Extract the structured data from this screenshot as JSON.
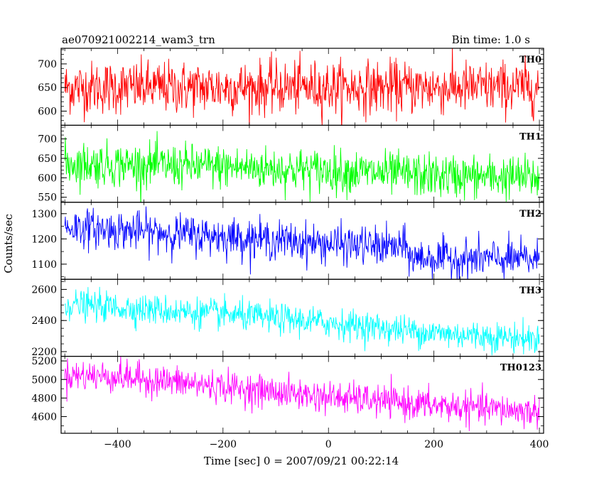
{
  "header": {
    "title": "ae070921002214_wam3_trn",
    "bin_time": "Bin time: 1.0 s"
  },
  "chart_data": {
    "type": "line",
    "xlabel": "Time [sec] 0 = 2007/09/21 00:22:14",
    "ylabel": "Counts/sec",
    "xlim": [
      -507,
      408
    ],
    "x_ticks": [
      -400,
      -200,
      0,
      200,
      400
    ],
    "x_tick_labels": [
      "−400",
      "−200",
      "0",
      "200",
      "400"
    ],
    "x_range": [
      -500,
      400
    ],
    "bin_time_s": 1.0,
    "grid": false,
    "panels": [
      {
        "label": "TH0",
        "color": "#ff0000",
        "ylim": [
          570,
          733
        ],
        "y_ticks": [
          600,
          650,
          700
        ],
        "trend": [
          [
            -500,
            650
          ],
          [
            400,
            650
          ]
        ],
        "noise": 28
      },
      {
        "label": "TH1",
        "color": "#00ff00",
        "ylim": [
          537,
          735
        ],
        "y_ticks": [
          550,
          600,
          650,
          700
        ],
        "trend": [
          [
            -500,
            637
          ],
          [
            -200,
            628
          ],
          [
            0,
            618
          ],
          [
            200,
            605
          ],
          [
            400,
            600
          ]
        ],
        "noise": 28
      },
      {
        "label": "TH2",
        "color": "#0000ff",
        "ylim": [
          1040,
          1345
        ],
        "y_ticks": [
          1100,
          1200,
          1300
        ],
        "trend": [
          [
            -500,
            1248
          ],
          [
            -200,
            1210
          ],
          [
            0,
            1180
          ],
          [
            150,
            1165
          ],
          [
            155,
            1125
          ],
          [
            400,
            1118
          ]
        ],
        "noise": 38
      },
      {
        "label": "TH3",
        "color": "#00ffff",
        "ylim": [
          2170,
          2665
        ],
        "y_ticks": [
          2200,
          2400,
          2600
        ],
        "trend": [
          [
            -500,
            2505
          ],
          [
            -200,
            2440
          ],
          [
            0,
            2385
          ],
          [
            200,
            2320
          ],
          [
            400,
            2280
          ]
        ],
        "noise": 48
      },
      {
        "label": "TH0123",
        "color": "#ff00ff",
        "ylim": [
          4420,
          5250
        ],
        "y_ticks": [
          4600,
          4800,
          5000,
          5200
        ],
        "trend": [
          [
            -500,
            5050
          ],
          [
            -400,
            5030
          ],
          [
            -200,
            4920
          ],
          [
            0,
            4810
          ],
          [
            200,
            4720
          ],
          [
            400,
            4650
          ]
        ],
        "noise": 85
      }
    ]
  }
}
